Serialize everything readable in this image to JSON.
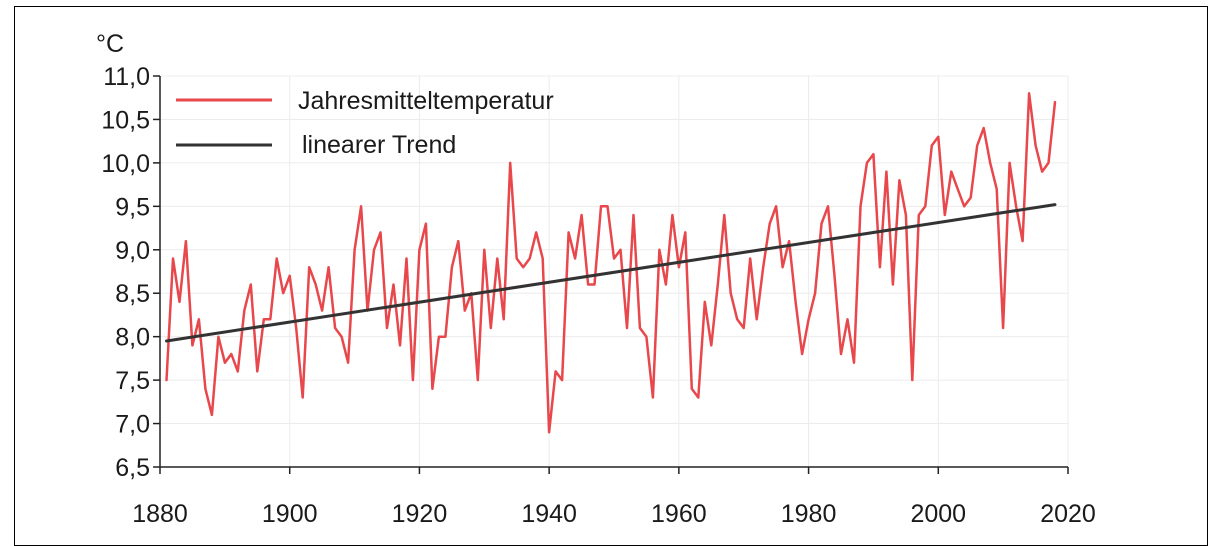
{
  "chart_data": {
    "type": "line",
    "title": "",
    "xlabel": "",
    "ylabel": "°C",
    "xlim": [
      1880,
      2020
    ],
    "ylim": [
      6.5,
      11.0
    ],
    "grid": true,
    "legend": "top-left",
    "x_ticks": [
      "1880",
      "1900",
      "1920",
      "1940",
      "1960",
      "1980",
      "2000",
      "2020"
    ],
    "y_ticks": [
      "6,5",
      "7,0",
      "7,5",
      "8,0",
      "8,5",
      "9,0",
      "9,5",
      "10,0",
      "10,5",
      "11,0"
    ],
    "series": [
      {
        "name": "Jahresmitteltemperatur",
        "color": "#e8474b",
        "x": [
          1881,
          1882,
          1883,
          1884,
          1885,
          1886,
          1887,
          1888,
          1889,
          1890,
          1891,
          1892,
          1893,
          1894,
          1895,
          1896,
          1897,
          1898,
          1899,
          1900,
          1901,
          1902,
          1903,
          1904,
          1905,
          1906,
          1907,
          1908,
          1909,
          1910,
          1911,
          1912,
          1913,
          1914,
          1915,
          1916,
          1917,
          1918,
          1919,
          1920,
          1921,
          1922,
          1923,
          1924,
          1925,
          1926,
          1927,
          1928,
          1929,
          1930,
          1931,
          1932,
          1933,
          1934,
          1935,
          1936,
          1937,
          1938,
          1939,
          1940,
          1941,
          1942,
          1943,
          1944,
          1945,
          1946,
          1947,
          1948,
          1949,
          1950,
          1951,
          1952,
          1953,
          1954,
          1955,
          1956,
          1957,
          1958,
          1959,
          1960,
          1961,
          1962,
          1963,
          1964,
          1965,
          1966,
          1967,
          1968,
          1969,
          1970,
          1971,
          1972,
          1973,
          1974,
          1975,
          1976,
          1977,
          1978,
          1979,
          1980,
          1981,
          1982,
          1983,
          1984,
          1985,
          1986,
          1987,
          1988,
          1989,
          1990,
          1991,
          1992,
          1993,
          1994,
          1995,
          1996,
          1997,
          1998,
          1999,
          2000,
          2001,
          2002,
          2003,
          2004,
          2005,
          2006,
          2007,
          2008,
          2009,
          2010,
          2011,
          2012,
          2013,
          2014,
          2015,
          2016,
          2017,
          2018
        ],
        "values": [
          7.5,
          8.9,
          8.4,
          9.1,
          7.9,
          8.2,
          7.4,
          7.1,
          8.0,
          7.7,
          7.8,
          7.6,
          8.3,
          8.6,
          7.6,
          8.2,
          8.2,
          8.9,
          8.5,
          8.7,
          8.1,
          7.3,
          8.8,
          8.6,
          8.3,
          8.8,
          8.1,
          8.0,
          7.7,
          9.0,
          9.5,
          8.3,
          9.0,
          9.2,
          8.1,
          8.6,
          7.9,
          8.9,
          7.5,
          9.0,
          9.3,
          7.4,
          8.0,
          8.0,
          8.8,
          9.1,
          8.3,
          8.5,
          7.5,
          9.0,
          8.1,
          8.9,
          8.2,
          10.0,
          8.9,
          8.8,
          8.9,
          9.2,
          8.9,
          6.9,
          7.6,
          7.5,
          9.2,
          8.9,
          9.4,
          8.6,
          8.6,
          9.5,
          9.5,
          8.9,
          9.0,
          8.1,
          9.4,
          8.1,
          8.0,
          7.3,
          9.0,
          8.6,
          9.4,
          8.8,
          9.2,
          7.4,
          7.3,
          8.4,
          7.9,
          8.6,
          9.4,
          8.5,
          8.2,
          8.1,
          8.9,
          8.2,
          8.8,
          9.3,
          9.5,
          8.8,
          9.1,
          8.4,
          7.8,
          8.2,
          8.5,
          9.3,
          9.5,
          8.7,
          7.8,
          8.2,
          7.7,
          9.5,
          10.0,
          10.1,
          8.8,
          9.9,
          8.6,
          9.8,
          9.4,
          7.5,
          9.4,
          9.5,
          10.2,
          10.3,
          9.4,
          9.9,
          9.7,
          9.5,
          9.6,
          10.2,
          10.4,
          10.0,
          9.7,
          8.1,
          10.0,
          9.5,
          9.1,
          10.8,
          10.2,
          9.9,
          10.0,
          10.7
        ]
      },
      {
        "name": "linearer Trend",
        "color": "#333333",
        "x": [
          1881,
          2018
        ],
        "values": [
          7.95,
          9.52
        ]
      }
    ]
  }
}
